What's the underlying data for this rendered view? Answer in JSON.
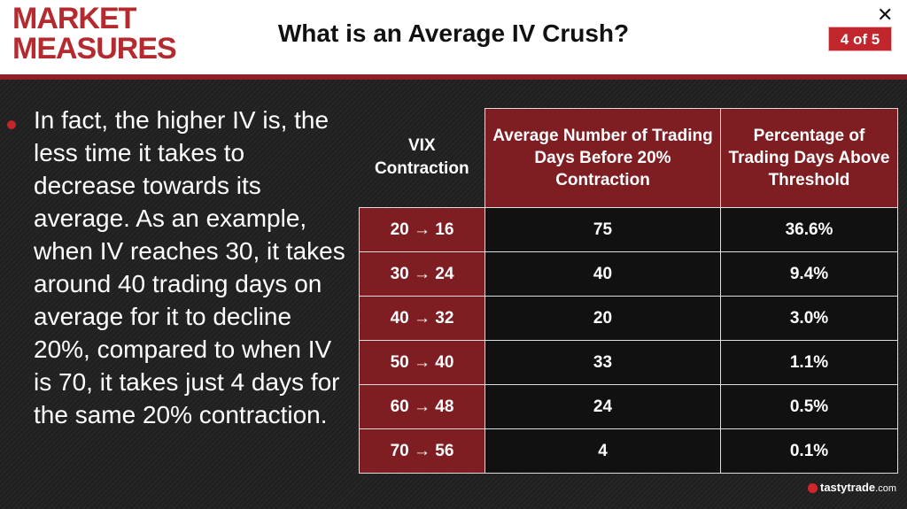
{
  "header": {
    "logo_line1": "MARKET",
    "logo_line2": "MEASURES",
    "title": "What is an Average IV Crush?",
    "page_indicator": "4 of 5",
    "close_symbol": "✕"
  },
  "content": {
    "bullet_text": "In fact, the higher IV is, the less time it takes to decrease towards its average. As an example, when IV reaches 30, it takes around 40 trading days on average for it to decline 20%, compared to when IV is 70, it takes just 4 days for the same 20% contraction."
  },
  "table": {
    "headers": [
      "VIX Contraction",
      "Average Number of Trading Days Before 20% Contraction",
      "Percentage of Trading Days Above Threshold"
    ],
    "rows": [
      [
        "20 → 16",
        "75",
        "36.6%"
      ],
      [
        "30 → 24",
        "40",
        "9.4%"
      ],
      [
        "40 → 32",
        "20",
        "3.0%"
      ],
      [
        "50 → 40",
        "33",
        "1.1%"
      ],
      [
        "60 → 48",
        "24",
        "0.5%"
      ],
      [
        "70 → 56",
        "4",
        "0.1%"
      ]
    ]
  },
  "footer": {
    "brand": "tastytrade",
    "brand_suffix": ".com"
  },
  "colors": {
    "accent": "#c0262b",
    "dark_red": "#7e1d22",
    "background": "#1a1a1a"
  }
}
